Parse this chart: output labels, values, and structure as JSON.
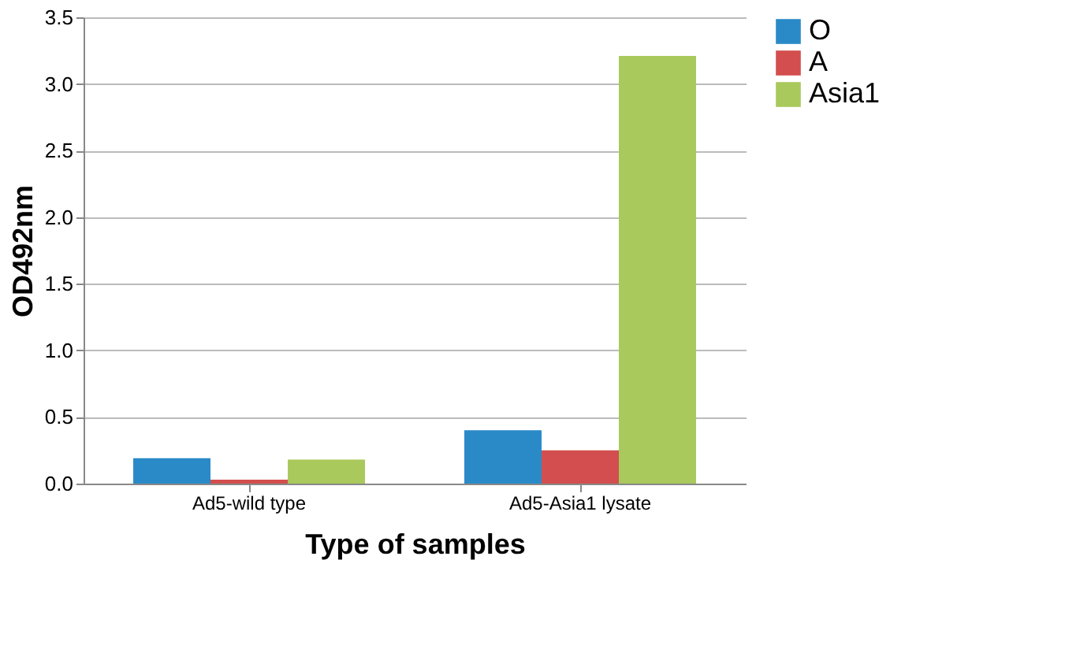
{
  "chart_data": {
    "type": "bar",
    "xlabel": "Type of samples",
    "ylabel": "OD492nm",
    "categories": [
      "Ad5-wild type",
      "Ad5-Asia1 lysate"
    ],
    "series": [
      {
        "name": "O",
        "color": "#2a8ac8",
        "values": [
          0.19,
          0.4
        ]
      },
      {
        "name": "A",
        "color": "#d34e4e",
        "values": [
          0.03,
          0.25
        ]
      },
      {
        "name": "Asia1",
        "color": "#a9c95c",
        "values": [
          0.18,
          3.21
        ]
      }
    ],
    "ylim": [
      0,
      3.5
    ],
    "yticks": [
      {
        "value": 0,
        "label": "0.0"
      },
      {
        "value": 0.5,
        "label": "0.5"
      },
      {
        "value": 1,
        "label": "1.0"
      },
      {
        "value": 1.5,
        "label": "1.5"
      },
      {
        "value": 2,
        "label": "2.0"
      },
      {
        "value": 2.5,
        "label": "2.5"
      },
      {
        "value": 3,
        "label": "3.0"
      },
      {
        "value": 3.5,
        "label": "3.5"
      }
    ],
    "grid": "y",
    "legend": "right"
  }
}
